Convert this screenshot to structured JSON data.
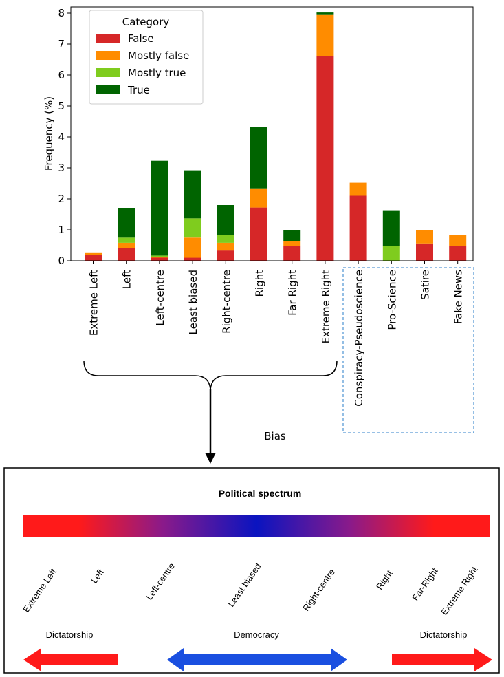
{
  "chart_data": {
    "type": "bar",
    "stacked": true,
    "ylabel": "Frequency (%)",
    "xlabel": "Bias",
    "ylim": [
      0,
      8.2
    ],
    "yticks": [
      0,
      1,
      2,
      3,
      4,
      5,
      6,
      7,
      8
    ],
    "categories": [
      "Extreme Left",
      "Left",
      "Left-centre",
      "Least biased",
      "Right-centre",
      "Right",
      "Far Right",
      "Extreme Right",
      "Conspiracy-Pseudoscience",
      "Pro-Science",
      "Satire",
      "Fake News"
    ],
    "series": [
      {
        "name": "False",
        "color": "#d62728",
        "values": [
          0.18,
          0.4,
          0.1,
          0.1,
          0.33,
          1.72,
          0.48,
          6.62,
          2.1,
          0.0,
          0.56,
          0.48
        ]
      },
      {
        "name": "Mostly false",
        "color": "#ff8c00",
        "values": [
          0.07,
          0.18,
          0.02,
          0.65,
          0.25,
          0.62,
          0.15,
          1.32,
          0.42,
          0.0,
          0.42,
          0.35
        ]
      },
      {
        "name": "Mostly true",
        "color": "#7fcc1e",
        "values": [
          0.0,
          0.17,
          0.05,
          0.62,
          0.25,
          0.0,
          0.0,
          0.0,
          0.0,
          0.48,
          0.0,
          0.0
        ]
      },
      {
        "name": "True",
        "color": "#006400",
        "values": [
          0.0,
          0.96,
          3.06,
          1.55,
          0.97,
          1.98,
          0.35,
          0.08,
          0.0,
          1.15,
          0.0,
          0.0
        ]
      }
    ],
    "legend": {
      "title": "Category",
      "placement": "top-left"
    }
  },
  "spectrum": {
    "title": "Political spectrum",
    "labels": [
      "Extreme Left",
      "Left",
      "Left-centre",
      "Least biased",
      "Right-centre",
      "Right",
      "Far-Right",
      "Extreme Right"
    ],
    "arrows": [
      {
        "label": "Dictatorship",
        "color": "#ff1a1a"
      },
      {
        "label": "Democracy",
        "color": "#1a4fe0"
      },
      {
        "label": "Dictatorship",
        "color": "#ff1a1a"
      }
    ],
    "gradient": [
      "#ff1a1a",
      "#0a14c0",
      "#ff1a1a"
    ]
  }
}
